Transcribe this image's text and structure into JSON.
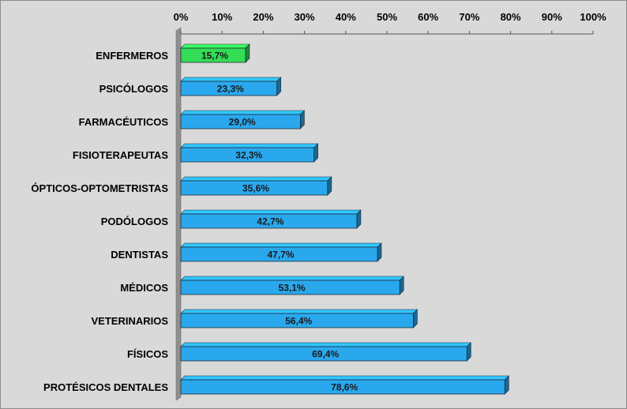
{
  "chart_data": {
    "type": "bar",
    "orientation": "horizontal",
    "categories": [
      "ENFERMEROS",
      "PSICÓLOGOS",
      "FARMACÉUTICOS",
      "FISIOTERAPEUTAS",
      "ÓPTICOS-OPTOMETRISTAS",
      "PODÓLOGOS",
      "DENTISTAS",
      "MÉDICOS",
      "VETERINARIOS",
      "FÍSICOS",
      "PROTÉSICOS DENTALES"
    ],
    "values": [
      15.7,
      23.3,
      29.0,
      32.3,
      35.6,
      42.7,
      47.7,
      53.1,
      56.4,
      69.4,
      78.6
    ],
    "value_labels": [
      "15,7%",
      "23,3%",
      "29,0%",
      "32,3%",
      "35,6%",
      "42,7%",
      "47,7%",
      "53,1%",
      "56,4%",
      "69,4%",
      "78,6%"
    ],
    "xlim": [
      0,
      100
    ],
    "x_ticks": [
      "0%",
      "10%",
      "20%",
      "30%",
      "40%",
      "50%",
      "60%",
      "70%",
      "80%",
      "90%",
      "100%"
    ],
    "x_axis_position": "top",
    "grid": false,
    "legend": "none",
    "bar_colors": [
      "#33dd55",
      "#2aa8ee",
      "#2aa8ee",
      "#2aa8ee",
      "#2aa8ee",
      "#2aa8ee",
      "#2aa8ee",
      "#2aa8ee",
      "#2aa8ee",
      "#2aa8ee",
      "#2aa8ee"
    ],
    "background_color": "#d9d9d9"
  }
}
